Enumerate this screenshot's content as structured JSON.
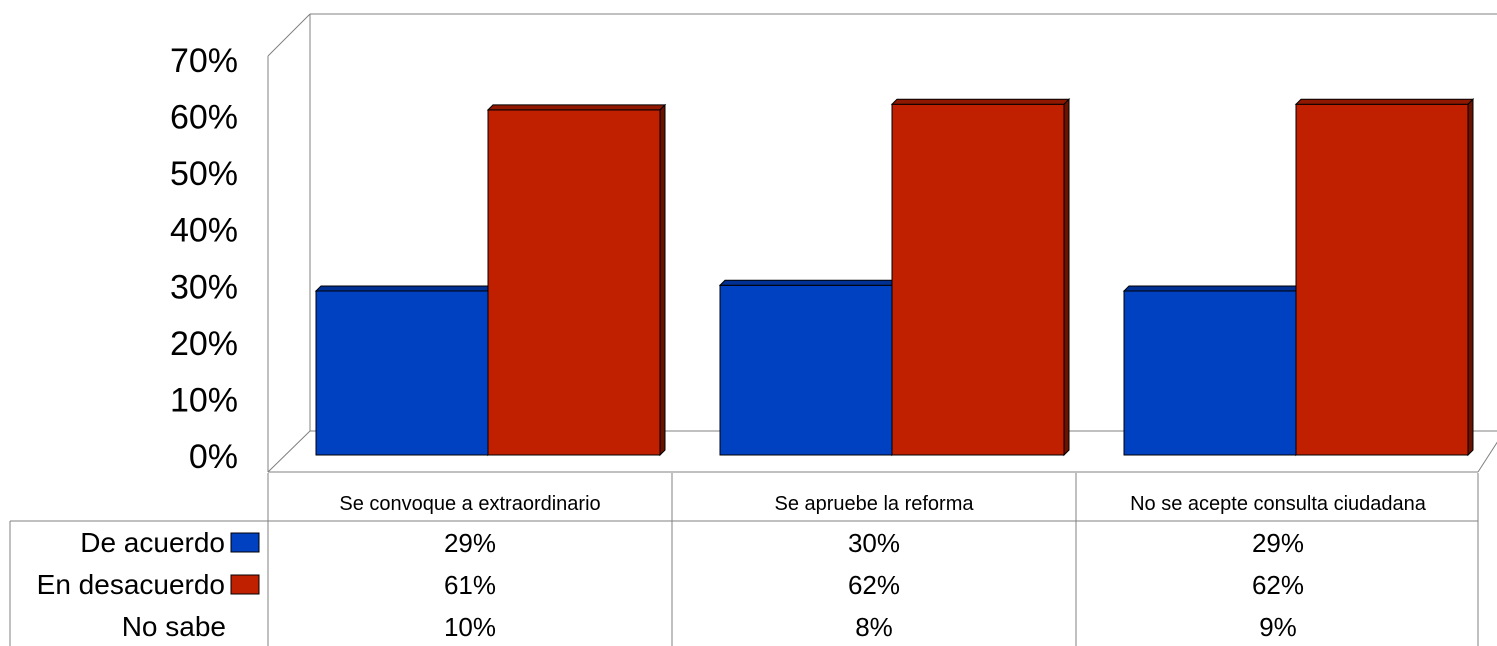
{
  "chart_data": {
    "type": "bar",
    "title": "",
    "xlabel": "",
    "ylabel": "",
    "ylim": [
      0,
      70
    ],
    "y_ticks": [
      "0%",
      "10%",
      "20%",
      "30%",
      "40%",
      "50%",
      "60%",
      "70%"
    ],
    "grid": false,
    "categories": [
      "Se convoque a extraordinario",
      "Se apruebe la reforma",
      "No se acepte consulta ciudadana"
    ],
    "series": [
      {
        "name": "De acuerdo",
        "values": [
          29,
          30,
          29
        ],
        "labels": [
          "29%",
          "30%",
          "29%"
        ],
        "color": "#0041c2",
        "plotted": true
      },
      {
        "name": "En desacuerdo",
        "values": [
          61,
          62,
          62
        ],
        "labels": [
          "61%",
          "62%",
          "62%"
        ],
        "color": "#c02000",
        "plotted": true
      },
      {
        "name": "No sabe",
        "values": [
          10,
          8,
          9
        ],
        "labels": [
          "10%",
          "8%",
          "9%"
        ],
        "color": null,
        "plotted": false
      }
    ],
    "legend": "data-table"
  }
}
